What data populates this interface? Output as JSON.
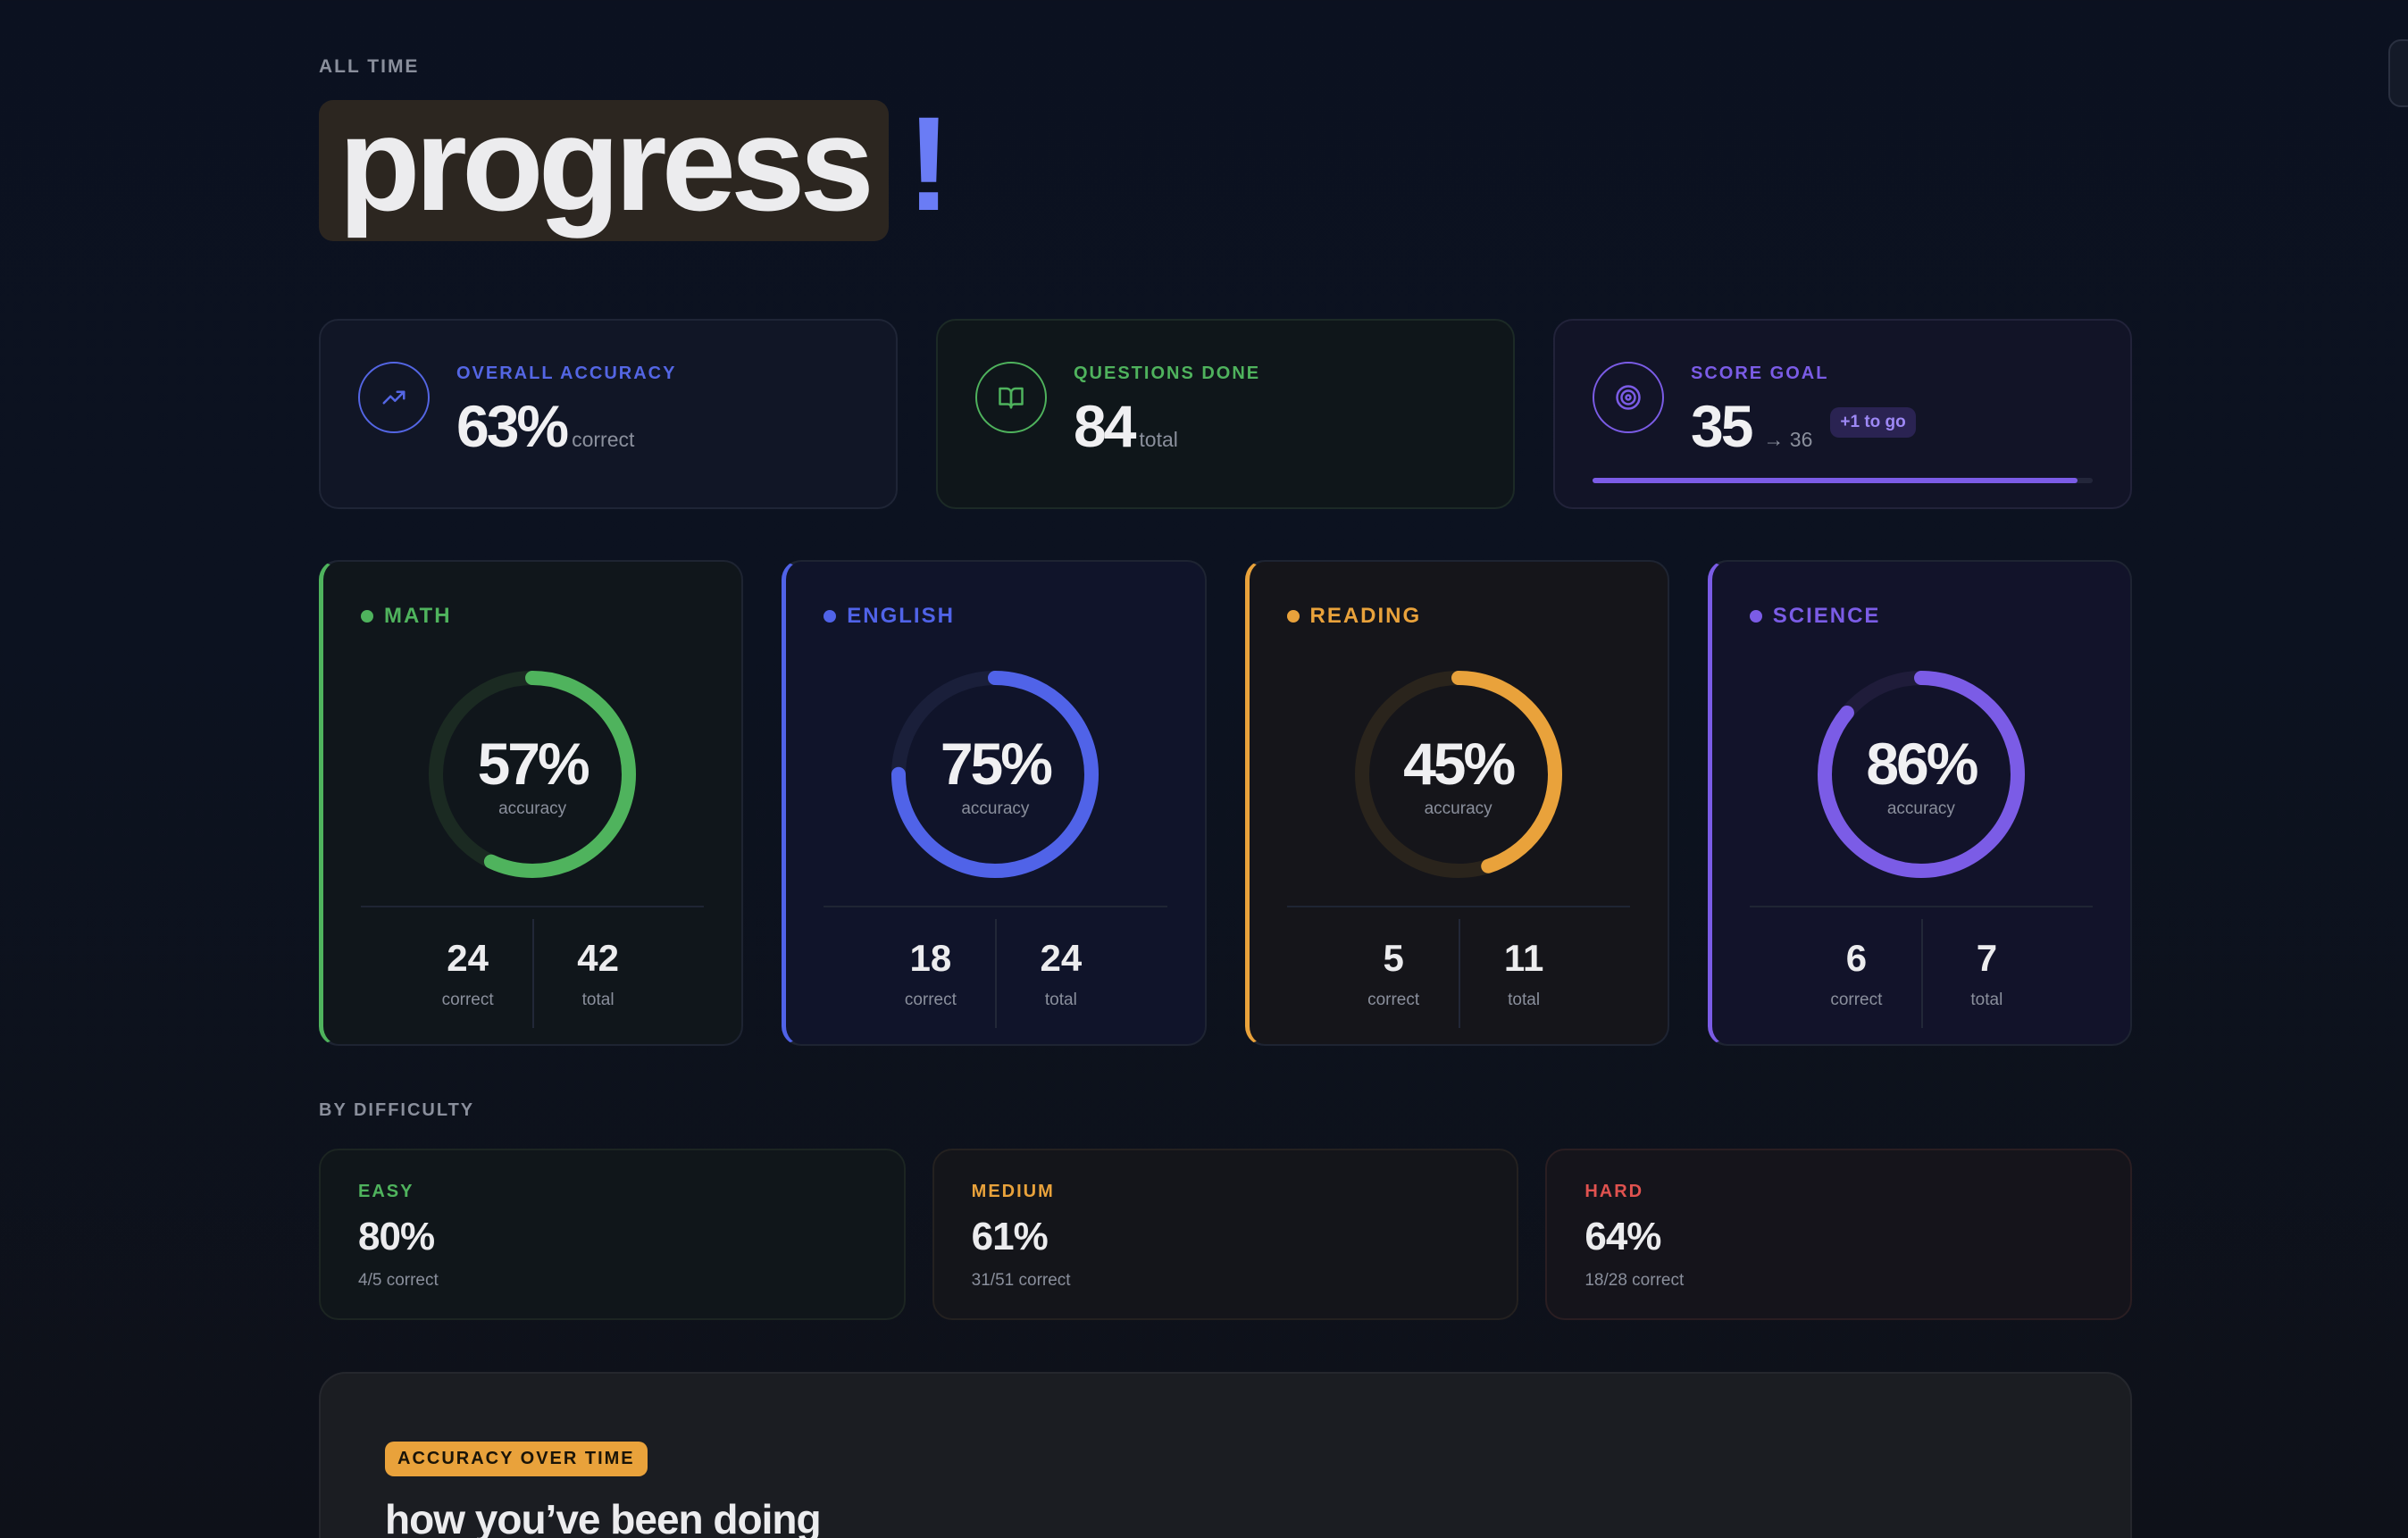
{
  "header": {
    "kicker": "ALL TIME",
    "title_word": "progress",
    "title_punct": "!"
  },
  "stats": {
    "accuracy": {
      "label": "OVERALL ACCURACY",
      "value": "63%",
      "unit": "correct",
      "color": "#5466e4",
      "icon": "trending-up-icon"
    },
    "questions": {
      "label": "QUESTIONS DONE",
      "value": "84",
      "unit": "total",
      "color": "#4fb35d",
      "icon": "book-open-icon"
    },
    "goal": {
      "label": "SCORE GOAL",
      "value": "35",
      "target": "→ 36",
      "badge": "+1 to go",
      "progress": 0.97,
      "color": "#7b5ce6",
      "icon": "target-icon"
    }
  },
  "subjects": [
    {
      "name": "MATH",
      "percent": "57%",
      "fraction": 0.57,
      "caption": "accuracy",
      "correct": "24",
      "correct_label": "correct",
      "total": "42",
      "total_label": "total",
      "color": "#4fb35d",
      "track": "#1b2a22"
    },
    {
      "name": "ENGLISH",
      "percent": "75%",
      "fraction": 0.75,
      "caption": "accuracy",
      "correct": "18",
      "correct_label": "correct",
      "total": "24",
      "total_label": "total",
      "color": "#5063e8",
      "track": "#1a1f3a"
    },
    {
      "name": "READING",
      "percent": "45%",
      "fraction": 0.45,
      "caption": "accuracy",
      "correct": "5",
      "correct_label": "correct",
      "total": "11",
      "total_label": "total",
      "color": "#e9a23b",
      "track": "#2a241c"
    },
    {
      "name": "SCIENCE",
      "percent": "86%",
      "fraction": 0.86,
      "caption": "accuracy",
      "correct": "6",
      "correct_label": "correct",
      "total": "7",
      "total_label": "total",
      "color": "#7b5ce6",
      "track": "#1f1c3a"
    }
  ],
  "difficulty": {
    "heading": "BY DIFFICULTY",
    "items": [
      {
        "label": "EASY",
        "percent": "80%",
        "detail": "4/5 correct",
        "color": "#4fb35d"
      },
      {
        "label": "MEDIUM",
        "percent": "61%",
        "detail": "31/51 correct",
        "color": "#e9a23b"
      },
      {
        "label": "HARD",
        "percent": "64%",
        "detail": "18/28 correct",
        "color": "#e0524f"
      }
    ]
  },
  "panel": {
    "tag": "ACCURACY OVER TIME",
    "title": "how you’ve been doing"
  }
}
